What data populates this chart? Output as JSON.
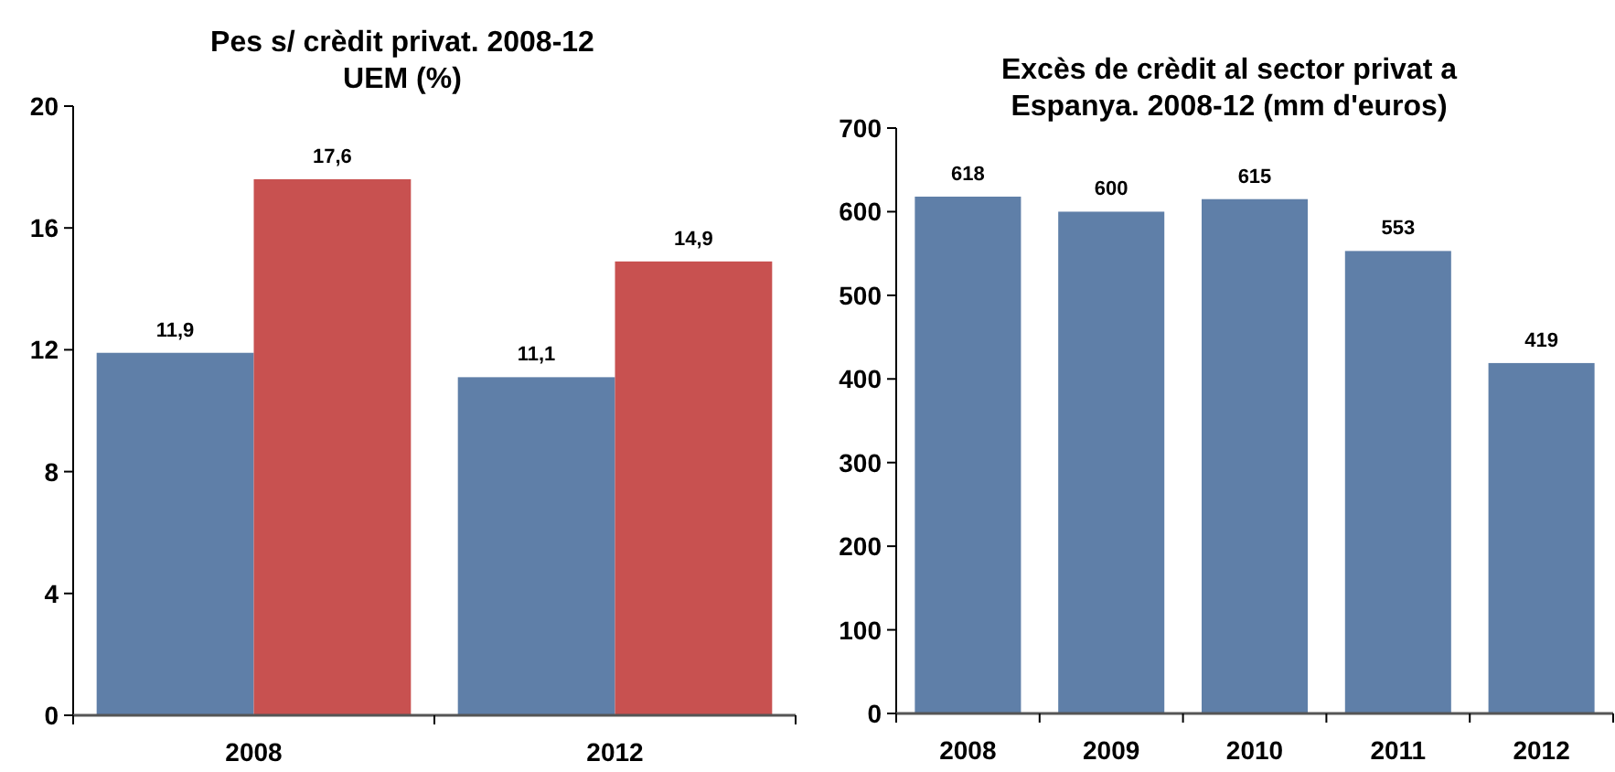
{
  "chart_data": [
    {
      "type": "bar",
      "title": "Pes s/ crèdit privat. 2008-12\nUEM (%)",
      "categories": [
        "2008",
        "2012"
      ],
      "series": [
        {
          "color": "#5f7fa8",
          "values": [
            11.9,
            11.1
          ],
          "value_labels": [
            "11,9",
            "11,1"
          ]
        },
        {
          "color": "#c85150",
          "values": [
            17.6,
            14.9
          ],
          "value_labels": [
            "17,6",
            "14,9"
          ]
        }
      ],
      "ylim": [
        0,
        20
      ],
      "yticks": [
        0,
        4,
        8,
        12,
        16,
        20
      ]
    },
    {
      "type": "bar",
      "title": "Excès de crèdit al sector privat a\nEspanya. 2008-12 (mm d'euros)",
      "categories": [
        "2008",
        "2009",
        "2010",
        "2011",
        "2012"
      ],
      "series": [
        {
          "color": "#5f7fa8",
          "values": [
            618,
            600,
            615,
            553,
            419
          ]
        }
      ],
      "data_labels": true,
      "ylim": [
        0,
        700
      ],
      "yticks": [
        0,
        100,
        200,
        300,
        400,
        500,
        600,
        700
      ]
    }
  ]
}
